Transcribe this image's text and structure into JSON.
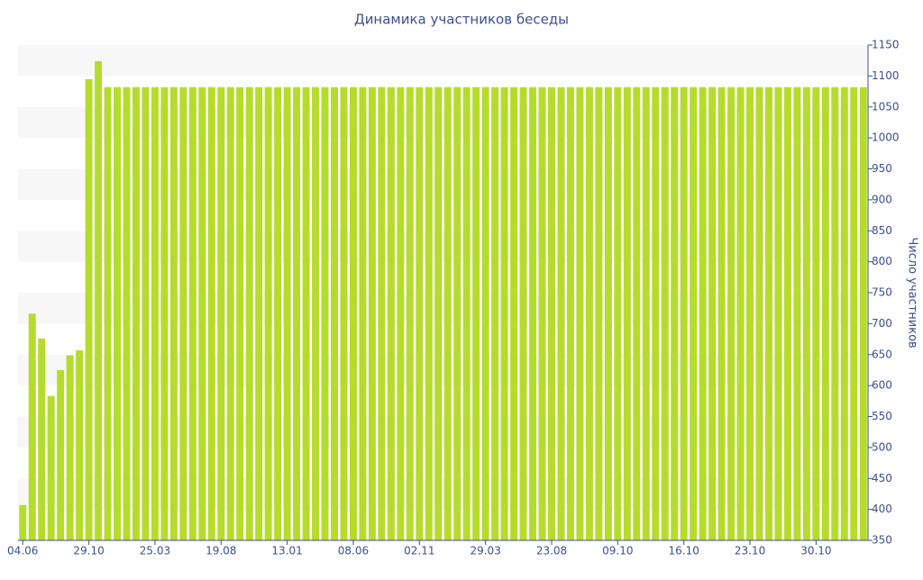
{
  "chart_data": {
    "type": "bar",
    "title": "Динамика участников беседы",
    "y_label": "Число участников",
    "categories": [
      "04.06",
      null,
      null,
      null,
      null,
      null,
      null,
      "29.10",
      null,
      null,
      null,
      null,
      null,
      null,
      "25.03",
      null,
      null,
      null,
      null,
      null,
      null,
      "19.08",
      null,
      null,
      null,
      null,
      null,
      null,
      "13.01",
      null,
      null,
      null,
      null,
      null,
      null,
      "08.06",
      null,
      null,
      null,
      null,
      null,
      null,
      "02.11",
      null,
      null,
      null,
      null,
      null,
      null,
      "29.03",
      null,
      null,
      null,
      null,
      null,
      null,
      "23.08",
      null,
      null,
      null,
      null,
      null,
      null,
      "09.10",
      null,
      null,
      null,
      null,
      null,
      null,
      "16.10",
      null,
      null,
      null,
      null,
      null,
      null,
      "23.10",
      null,
      null,
      null,
      null,
      null,
      null,
      "30.10",
      null,
      null,
      null,
      null,
      null
    ],
    "values": [
      407,
      716,
      676,
      583,
      625,
      649,
      657,
      1095,
      1124,
      1082,
      1082,
      1082,
      1082,
      1082,
      1082,
      1082,
      1082,
      1082,
      1082,
      1082,
      1082,
      1082,
      1082,
      1082,
      1082,
      1082,
      1082,
      1082,
      1082,
      1082,
      1082,
      1082,
      1082,
      1082,
      1082,
      1082,
      1082,
      1082,
      1082,
      1082,
      1082,
      1082,
      1082,
      1082,
      1082,
      1082,
      1082,
      1082,
      1082,
      1082,
      1082,
      1082,
      1082,
      1082,
      1082,
      1082,
      1082,
      1082,
      1082,
      1082,
      1082,
      1082,
      1082,
      1082,
      1082,
      1082,
      1082,
      1082,
      1082,
      1082,
      1082,
      1082,
      1082,
      1082,
      1082,
      1082,
      1082,
      1082,
      1082,
      1082,
      1082,
      1082,
      1082,
      1082,
      1082,
      1082,
      1082,
      1082,
      1082,
      1082
    ],
    "color": "#b5dc2c",
    "ylim": [
      350,
      1150
    ],
    "yticks": [
      350,
      400,
      450,
      500,
      550,
      600,
      650,
      700,
      750,
      800,
      850,
      900,
      950,
      1000,
      1050,
      1100,
      1150
    ],
    "grid": true
  }
}
